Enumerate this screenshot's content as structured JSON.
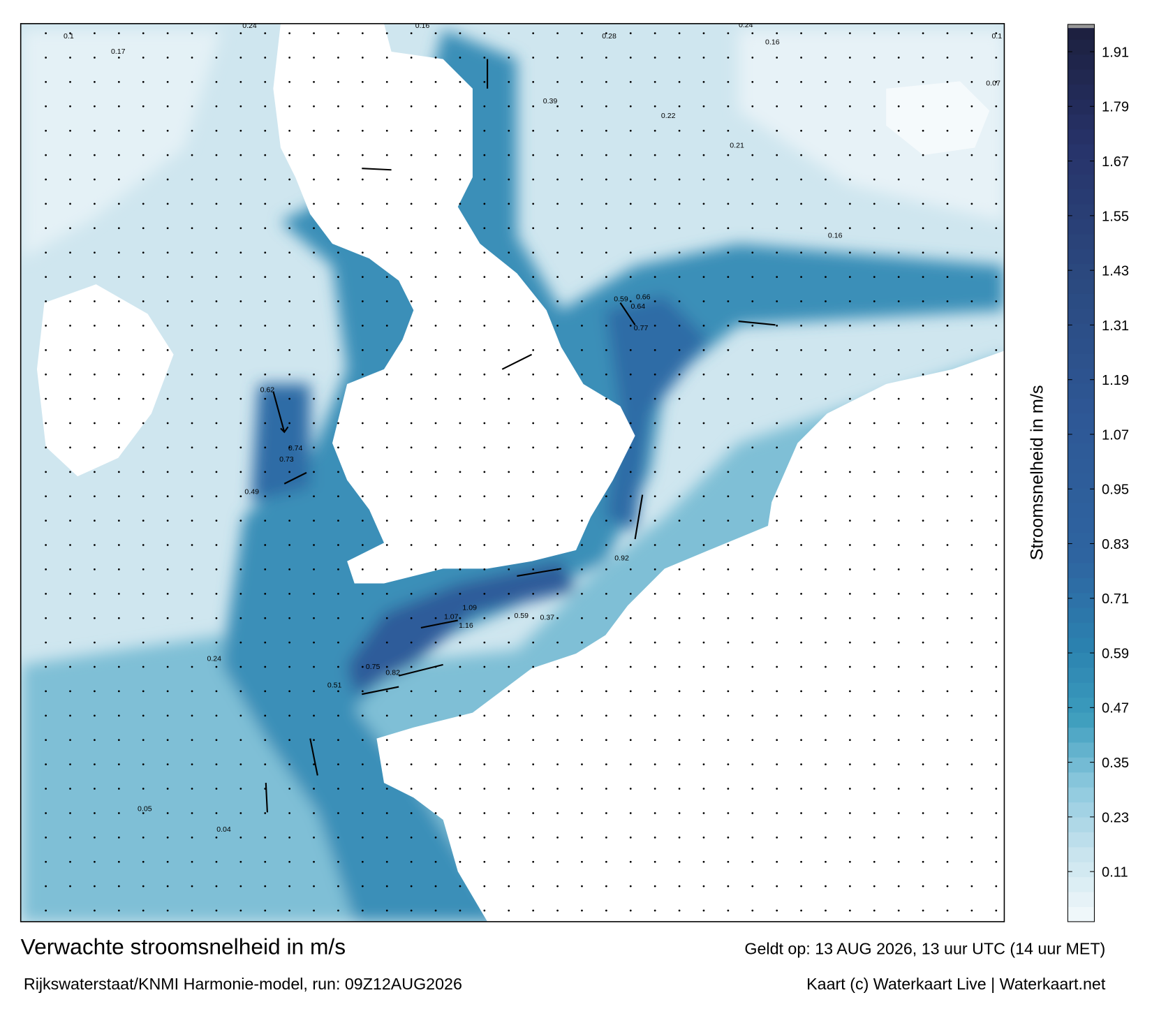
{
  "header": {
    "title": "Verwachte stroomsnelheid in m/s",
    "subtitle": "Rijkswaterstaat/KNMI Harmonie-model, run: 09Z12AUG2026",
    "valid": "Geldt op: 13 AUG 2026, 13 uur UTC (14 uur MET)",
    "credit": "Kaart (c) Waterkaart Live | Waterkaart.net"
  },
  "colorbar": {
    "label": "Stroomsnelheid in m/s",
    "range": [
      0,
      1.97
    ],
    "ticks": [
      0.11,
      0.23,
      0.35,
      0.47,
      0.59,
      0.71,
      0.83,
      0.95,
      1.07,
      1.19,
      1.31,
      1.43,
      1.55,
      1.67,
      1.79,
      1.91
    ]
  },
  "map": {
    "value_labels": [
      0.1,
      0.17,
      0.24,
      0.16,
      0.24,
      0.16,
      0.28,
      0.39,
      0.22,
      0.21,
      0.16,
      0.59,
      0.66,
      0.64,
      0.77,
      0.74,
      0.73,
      0.62,
      0.49,
      1.09,
      1.16,
      1.07,
      0.92,
      0.59,
      0.37,
      0.24,
      0.05,
      0.04,
      0.82,
      0.75,
      0.51,
      0.1,
      0.07
    ]
  }
}
